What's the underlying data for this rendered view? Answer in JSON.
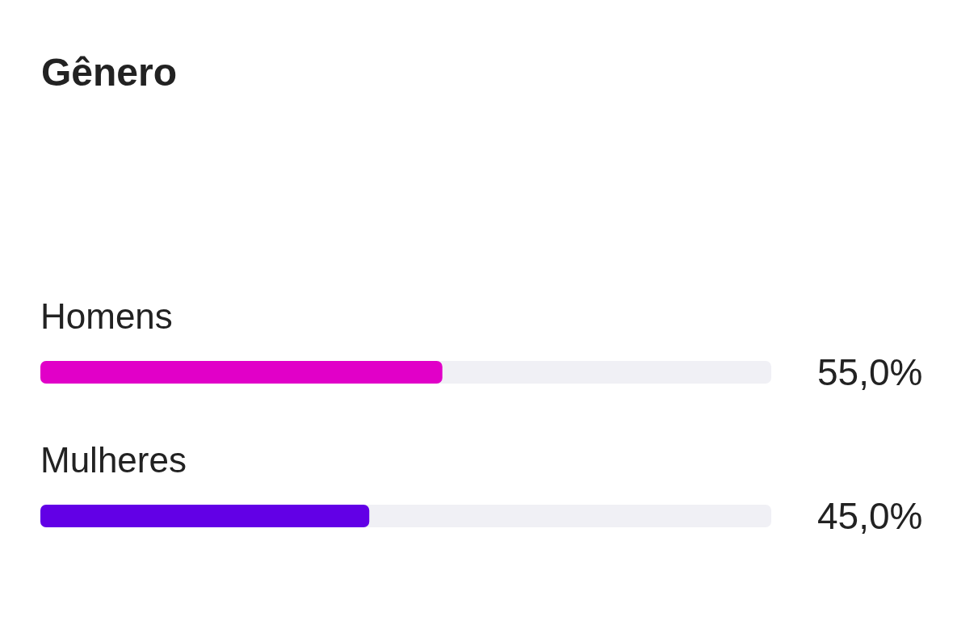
{
  "chart_data": {
    "type": "bar",
    "title": "Gênero",
    "orientation": "horizontal",
    "categories": [
      "Homens",
      "Mulheres"
    ],
    "values": [
      55.0,
      45.0
    ],
    "colors": [
      "#e100c8",
      "#6200e6"
    ],
    "value_labels": [
      "55,0%",
      "45,0%"
    ],
    "xlim": [
      0,
      100
    ],
    "tick_labels": false
  }
}
